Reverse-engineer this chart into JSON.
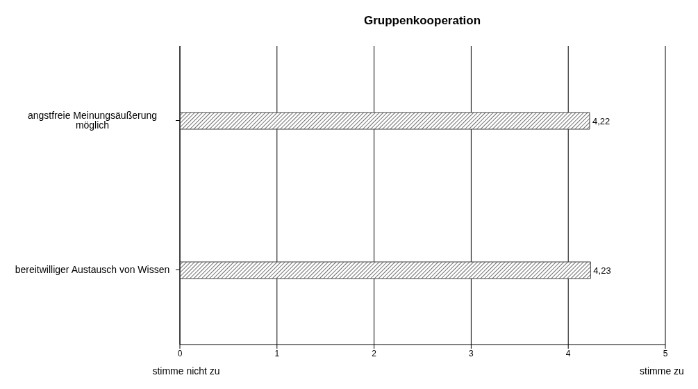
{
  "chart_data": {
    "type": "bar",
    "orientation": "horizontal",
    "title": "Gruppenkooperation",
    "categories": [
      "angstfreie Meinungsäußerung möglich",
      "bereitwilliger Austausch von Wissen"
    ],
    "values": [
      4.22,
      4.23
    ],
    "value_labels": [
      "4,22",
      "4,23"
    ],
    "color": "#404040",
    "xlim": [
      0,
      5
    ],
    "xticks": [
      0,
      1,
      2,
      3,
      4,
      5
    ],
    "grid": "x",
    "legend": false,
    "annotations": [
      "stimme nicht zu",
      "stimme zu"
    ]
  }
}
